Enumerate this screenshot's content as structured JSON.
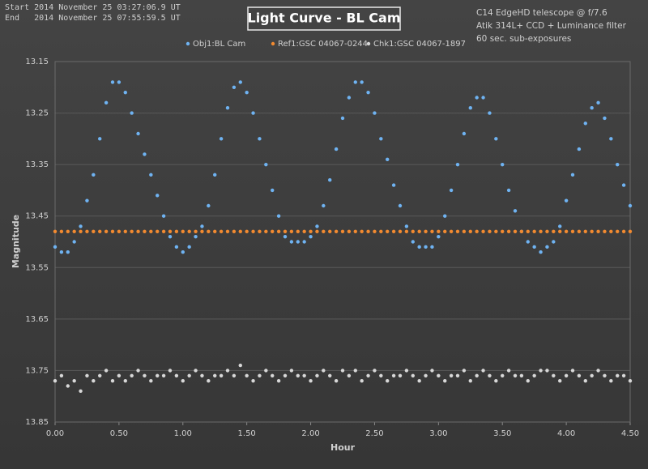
{
  "chart_data": {
    "type": "scatter",
    "title": "Light Curve - BL Cam",
    "annotations": [
      "Start 2014 November 25 03:27:06.9 UT",
      "End   2014 November 25 07:55:59.5 UT",
      "C14 EdgeHD telescope @ f/7.6",
      "Atik 314L+ CCD + Luminance filter",
      "60 sec. sub-exposures"
    ],
    "x_label": "Hour",
    "y_label": "Magnitude",
    "x": [
      0,
      0.05,
      0.1,
      0.15,
      0.2,
      0.25,
      0.3,
      0.35,
      0.4,
      0.45,
      0.5,
      0.55,
      0.6,
      0.65,
      0.7,
      0.75,
      0.8,
      0.85,
      0.9,
      0.95,
      1,
      1.05,
      1.1,
      1.15,
      1.2,
      1.25,
      1.3,
      1.35,
      1.4,
      1.45,
      1.5,
      1.55,
      1.6,
      1.65,
      1.7,
      1.75,
      1.8,
      1.85,
      1.9,
      1.95,
      2,
      2.05,
      2.1,
      2.15,
      2.2,
      2.25,
      2.3,
      2.35,
      2.4,
      2.45,
      2.5,
      2.55,
      2.6,
      2.65,
      2.7,
      2.75,
      2.8,
      2.85,
      2.9,
      2.95,
      3,
      3.05,
      3.1,
      3.15,
      3.2,
      3.25,
      3.3,
      3.35,
      3.4,
      3.45,
      3.5,
      3.55,
      3.6,
      3.65,
      3.7,
      3.75,
      3.8,
      3.85,
      3.9,
      3.95,
      4,
      4.05,
      4.1,
      4.15,
      4.2,
      4.25,
      4.3,
      4.35,
      4.4,
      4.45,
      4.5
    ],
    "series": [
      {
        "name": "Obj1:BL Cam",
        "color": "#6fb3f2",
        "values": [
          13.51,
          13.52,
          13.52,
          13.5,
          13.47,
          13.42,
          13.37,
          13.3,
          13.23,
          13.19,
          13.19,
          13.21,
          13.25,
          13.29,
          13.33,
          13.37,
          13.41,
          13.45,
          13.49,
          13.51,
          13.52,
          13.51,
          13.49,
          13.47,
          13.43,
          13.37,
          13.3,
          13.24,
          13.2,
          13.19,
          13.21,
          13.25,
          13.3,
          13.35,
          13.4,
          13.45,
          13.49,
          13.5,
          13.5,
          13.5,
          13.49,
          13.47,
          13.43,
          13.38,
          13.32,
          13.26,
          13.22,
          13.19,
          13.19,
          13.21,
          13.25,
          13.3,
          13.34,
          13.39,
          13.43,
          13.47,
          13.5,
          13.51,
          13.51,
          13.51,
          13.49,
          13.45,
          13.4,
          13.35,
          13.29,
          13.24,
          13.22,
          13.22,
          13.25,
          13.3,
          13.35,
          13.4,
          13.44,
          13.48,
          13.5,
          13.51,
          13.52,
          13.51,
          13.5,
          13.47,
          13.42,
          13.37,
          13.32,
          13.27,
          13.24,
          13.23,
          13.26,
          13.3,
          13.35,
          13.39,
          13.43
        ]
      },
      {
        "name": "Ref1:GSC 04067-0244",
        "color": "#f28a30",
        "values": [
          13.48,
          13.48,
          13.48,
          13.48,
          13.48,
          13.48,
          13.48,
          13.48,
          13.48,
          13.48,
          13.48,
          13.48,
          13.48,
          13.48,
          13.48,
          13.48,
          13.48,
          13.48,
          13.48,
          13.48,
          13.48,
          13.48,
          13.48,
          13.48,
          13.48,
          13.48,
          13.48,
          13.48,
          13.48,
          13.48,
          13.48,
          13.48,
          13.48,
          13.48,
          13.48,
          13.48,
          13.48,
          13.48,
          13.48,
          13.48,
          13.48,
          13.48,
          13.48,
          13.48,
          13.48,
          13.48,
          13.48,
          13.48,
          13.48,
          13.48,
          13.48,
          13.48,
          13.48,
          13.48,
          13.48,
          13.48,
          13.48,
          13.48,
          13.48,
          13.48,
          13.48,
          13.48,
          13.48,
          13.48,
          13.48,
          13.48,
          13.48,
          13.48,
          13.48,
          13.48,
          13.48,
          13.48,
          13.48,
          13.48,
          13.48,
          13.48,
          13.48,
          13.48,
          13.48,
          13.48,
          13.48,
          13.48,
          13.48,
          13.48,
          13.48,
          13.48,
          13.48,
          13.48,
          13.48,
          13.48,
          13.48
        ]
      },
      {
        "name": "Chk1:GSC 04067-1897",
        "color": "#d8d8d8",
        "values": [
          13.77,
          13.76,
          13.78,
          13.77,
          13.79,
          13.76,
          13.77,
          13.76,
          13.75,
          13.77,
          13.76,
          13.77,
          13.76,
          13.75,
          13.76,
          13.77,
          13.76,
          13.76,
          13.75,
          13.76,
          13.77,
          13.76,
          13.75,
          13.76,
          13.77,
          13.76,
          13.76,
          13.75,
          13.76,
          13.74,
          13.76,
          13.77,
          13.76,
          13.75,
          13.76,
          13.77,
          13.76,
          13.75,
          13.76,
          13.76,
          13.77,
          13.76,
          13.75,
          13.76,
          13.77,
          13.75,
          13.76,
          13.75,
          13.77,
          13.76,
          13.75,
          13.76,
          13.77,
          13.76,
          13.76,
          13.75,
          13.76,
          13.77,
          13.76,
          13.75,
          13.76,
          13.77,
          13.76,
          13.76,
          13.75,
          13.77,
          13.76,
          13.75,
          13.76,
          13.77,
          13.76,
          13.75,
          13.76,
          13.76,
          13.77,
          13.76,
          13.75,
          13.75,
          13.76,
          13.77,
          13.76,
          13.75,
          13.76,
          13.77,
          13.76,
          13.75,
          13.76,
          13.77,
          13.76,
          13.76,
          13.77
        ]
      }
    ],
    "xlim": [
      0,
      4.5
    ],
    "xticks": [
      {
        "value": 0,
        "label": "0.00"
      },
      {
        "value": 0.5,
        "label": "0.50"
      },
      {
        "value": 1,
        "label": "1.00"
      },
      {
        "value": 1.5,
        "label": "1.50"
      },
      {
        "value": 2,
        "label": "2.00"
      },
      {
        "value": 2.5,
        "label": "2.50"
      },
      {
        "value": 3,
        "label": "3.00"
      },
      {
        "value": 3.5,
        "label": "3.50"
      },
      {
        "value": 4,
        "label": "4.00"
      },
      {
        "value": 4.5,
        "label": "4.50"
      }
    ],
    "ylim": [
      13.15,
      13.85
    ],
    "yticks": [
      13.15,
      13.25,
      13.35,
      13.45,
      13.55,
      13.65,
      13.75,
      13.85
    ],
    "y_reversed": true,
    "grid": true,
    "legend": "top"
  }
}
